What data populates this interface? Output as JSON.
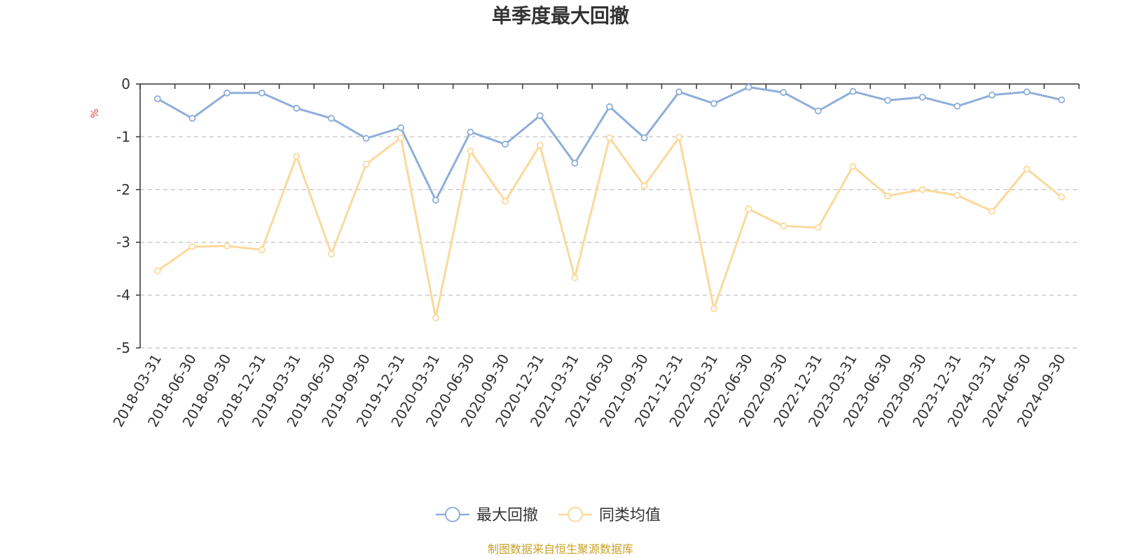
{
  "chart_data": {
    "type": "line",
    "title": "单季度最大回撤",
    "ylabel": "%",
    "ylim": [
      -5,
      0
    ],
    "yticks": [
      0,
      -1,
      -2,
      -3,
      -4,
      -5
    ],
    "grid": true,
    "legend_position": "bottom-center",
    "categories": [
      "2018-03-31",
      "2018-06-30",
      "2018-09-30",
      "2018-12-31",
      "2019-03-31",
      "2019-06-30",
      "2019-09-30",
      "2019-12-31",
      "2020-03-31",
      "2020-06-30",
      "2020-09-30",
      "2020-12-31",
      "2021-03-31",
      "2021-06-30",
      "2021-09-30",
      "2021-12-31",
      "2022-03-31",
      "2022-06-30",
      "2022-09-30",
      "2022-12-31",
      "2023-03-31",
      "2023-06-30",
      "2023-09-30",
      "2023-12-31",
      "2024-03-31",
      "2024-06-30",
      "2024-09-30"
    ],
    "series": [
      {
        "name": "最大回撤",
        "color": "#8eaedb",
        "values": [
          -0.28,
          -0.65,
          -0.17,
          -0.17,
          -0.46,
          -0.65,
          -1.03,
          -0.83,
          -2.2,
          -0.91,
          -1.14,
          -0.6,
          -1.5,
          -0.43,
          -1.02,
          -0.15,
          -0.37,
          -0.06,
          -0.16,
          -0.51,
          -0.14,
          -0.31,
          -0.25,
          -0.42,
          -0.21,
          -0.15,
          -0.3
        ]
      },
      {
        "name": "同类均值",
        "color": "#fbd99b",
        "values": [
          -3.54,
          -3.08,
          -3.07,
          -3.14,
          -1.37,
          -3.22,
          -1.52,
          -1.02,
          -4.43,
          -1.27,
          -2.22,
          -1.16,
          -3.67,
          -1.02,
          -1.93,
          -1.01,
          -4.26,
          -2.37,
          -2.69,
          -2.72,
          -1.56,
          -2.12,
          -2.0,
          -2.11,
          -2.41,
          -1.61,
          -2.14
        ]
      }
    ]
  },
  "footer": {
    "source": "制图数据来自恒生聚源数据库"
  }
}
